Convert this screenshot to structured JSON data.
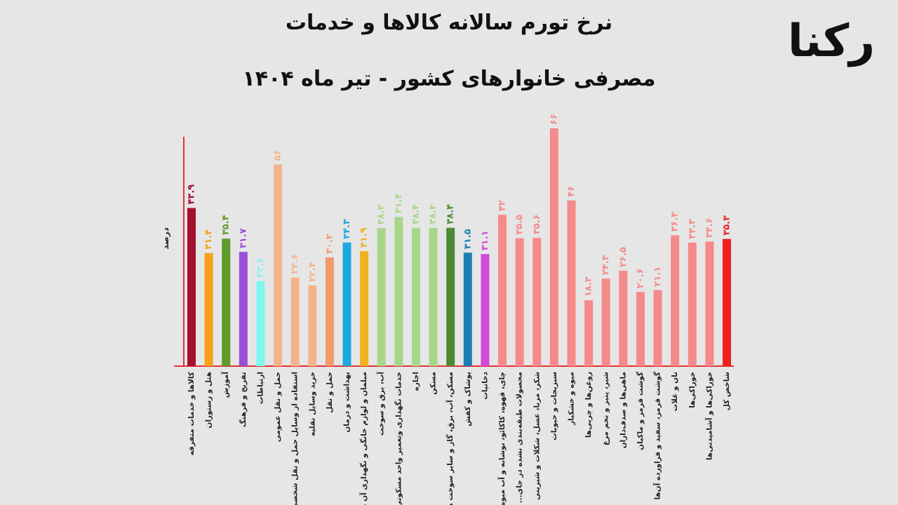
{
  "chart_data": {
    "type": "bar",
    "title": "نرخ تورم سالانه کالاها و خدمات",
    "subtitle": "مصرفی خانوارهای کشور - تیر ماه ۱۴۰۴",
    "logo": "رکنا",
    "y_label": "درصد",
    "categories": [
      "کالاها و خدمات متفرقه",
      "هتل و رستوران",
      "آموزش",
      "تفریح و فرهنگ",
      "ارتباطات",
      "حمل و نقل عمومی",
      "استفاده از وسایل حمل و نقل شخصی",
      "خرید وسایل نقلیه",
      "حمل و نقل",
      "بهداشت و درمان",
      "مبلمان و لوازم خانگی و نگهداری آن ها",
      "آب، برق و سوخت",
      "خدمات نگهداری وتعمیر واحد مسکونی",
      "اجاره",
      "مسکن",
      "مسکن، آب، برق، گاز و سایر سوخت ها",
      "پوشاک و کفش",
      "دخانیات",
      "چای، قهوه، کاکائو، نوشابه و آب میوه",
      "محصولات طبقه‌بندی نشده در جای...",
      "شکر، مربا، عسل، شکلات و شیرینی",
      "سبزیجات و حبوبات",
      "میوه و خشکبار",
      "روغن‌ها و چربی‌ها",
      "شیر، پنیر و تخم مرغ",
      "ماهی‌ها و صدف‌داران",
      "گوشت قرمز و ماکیان",
      "گوشت قرمز، سفید و فراورده آن‌ها",
      "نان و غلات",
      "خوراکی‌ها",
      "خوراکی‌ها و آشامیدنی‌ها",
      "شاخص کل"
    ],
    "values": [
      43.9,
      31.4,
      35.4,
      31.7,
      23.6,
      56,
      24.6,
      22.4,
      30.2,
      34.3,
      31.9,
      38.3,
      41.4,
      38.4,
      38.4,
      38.4,
      31.5,
      31.1,
      42,
      35.5,
      35.6,
      66,
      46,
      18.3,
      24.3,
      26.5,
      20.6,
      21.1,
      36.3,
      34.3,
      34.6,
      35.3
    ],
    "value_labels": [
      "۴۳.۹",
      "۳۱.۴",
      "۳۵.۴",
      "۳۱.۷",
      "۲۳.۶",
      "۵۶",
      "۲۴.۶",
      "۲۲.۴",
      "۳۰.۲",
      "۳۴.۳",
      "۳۱.۹",
      "۳۸.۳",
      "۴۱.۴",
      "۳۸.۴",
      "۳۸.۴",
      "۳۸.۴",
      "۳۱.۵",
      "۳۱.۱",
      "۴۲",
      "۳۵.۵",
      "۳۵.۶",
      "۶۶",
      "۴۶",
      "۱۸.۳",
      "۲۴.۳",
      "۲۶.۵",
      "۲۰.۶",
      "۲۱.۱",
      "۳۶.۳",
      "۳۴.۳",
      "۳۴.۶",
      "۳۵.۳"
    ],
    "colors": [
      "#a3112e",
      "#f7a11a",
      "#5f9a2a",
      "#9b4fd6",
      "#7ff5f0",
      "#f4b48a",
      "#f4b48a",
      "#f4b48a",
      "#f09a6a",
      "#1ea8e0",
      "#f0b020",
      "#a8d68a",
      "#a8d68a",
      "#a8d68a",
      "#a8d68a",
      "#4e8a34",
      "#1d7fb0",
      "#d24ad8",
      "#f58a8a",
      "#f58a8a",
      "#f58a8a",
      "#f58a8a",
      "#f58a8a",
      "#f58a8a",
      "#f58a8a",
      "#f58a8a",
      "#f58a8a",
      "#f58a8a",
      "#f58a8a",
      "#f58a8a",
      "#f58a8a",
      "#ef2020"
    ],
    "ylim": [
      0,
      66
    ]
  }
}
